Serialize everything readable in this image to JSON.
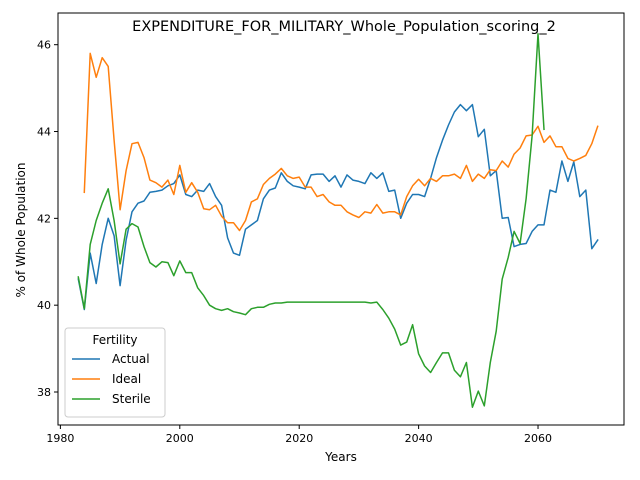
{
  "chart_data": {
    "type": "line",
    "title": "EXPENDITURE_FOR_MILITARY_Whole_Population_scoring_2",
    "xlabel": "Years",
    "ylabel": "% of Whole Population",
    "xlim": [
      1979.6,
      2074.4
    ],
    "ylim": [
      37.24,
      46.73
    ],
    "x_ticks": [
      1980,
      2000,
      2020,
      2040,
      2060
    ],
    "y_ticks": [
      38,
      40,
      42,
      44,
      46
    ],
    "grid": false,
    "legend": {
      "title": "Fertility",
      "placement": "lower-left"
    },
    "series": [
      {
        "name": "Actual",
        "color": "#1f77b4",
        "points": [
          [
            1983,
            40.6
          ],
          [
            1984,
            39.9
          ],
          [
            1985,
            41.2
          ],
          [
            1986,
            40.5
          ],
          [
            1987,
            41.4
          ],
          [
            1988,
            42.0
          ],
          [
            1989,
            41.6
          ],
          [
            1990,
            40.45
          ],
          [
            1991,
            41.5
          ],
          [
            1992,
            42.15
          ],
          [
            1993,
            42.35
          ],
          [
            1994,
            42.4
          ],
          [
            1995,
            42.6
          ],
          [
            1996,
            42.62
          ],
          [
            1997,
            42.65
          ],
          [
            1998,
            42.75
          ],
          [
            1999,
            42.8
          ],
          [
            2000,
            43.0
          ],
          [
            2001,
            42.55
          ],
          [
            2002,
            42.5
          ],
          [
            2003,
            42.65
          ],
          [
            2004,
            42.62
          ],
          [
            2005,
            42.8
          ],
          [
            2006,
            42.5
          ],
          [
            2007,
            42.3
          ],
          [
            2008,
            41.55
          ],
          [
            2009,
            41.2
          ],
          [
            2010,
            41.15
          ],
          [
            2011,
            41.75
          ],
          [
            2012,
            41.85
          ],
          [
            2013,
            41.95
          ],
          [
            2014,
            42.45
          ],
          [
            2015,
            42.65
          ],
          [
            2016,
            42.7
          ],
          [
            2017,
            43.05
          ],
          [
            2018,
            42.85
          ],
          [
            2019,
            42.75
          ],
          [
            2020,
            42.72
          ],
          [
            2021,
            42.68
          ],
          [
            2022,
            43.0
          ],
          [
            2023,
            43.02
          ],
          [
            2024,
            43.02
          ],
          [
            2025,
            42.85
          ],
          [
            2026,
            42.98
          ],
          [
            2027,
            42.72
          ],
          [
            2028,
            43.0
          ],
          [
            2029,
            42.88
          ],
          [
            2030,
            42.85
          ],
          [
            2031,
            42.8
          ],
          [
            2032,
            43.05
          ],
          [
            2033,
            42.92
          ],
          [
            2034,
            43.05
          ],
          [
            2035,
            42.62
          ],
          [
            2036,
            42.65
          ],
          [
            2037,
            42.0
          ],
          [
            2038,
            42.35
          ],
          [
            2039,
            42.55
          ],
          [
            2040,
            42.55
          ],
          [
            2041,
            42.5
          ],
          [
            2042,
            42.92
          ],
          [
            2043,
            43.4
          ],
          [
            2044,
            43.8
          ],
          [
            2045,
            44.15
          ],
          [
            2046,
            44.45
          ],
          [
            2047,
            44.62
          ],
          [
            2048,
            44.48
          ],
          [
            2049,
            44.62
          ],
          [
            2050,
            43.88
          ],
          [
            2051,
            44.05
          ],
          [
            2052,
            42.98
          ],
          [
            2053,
            43.1
          ],
          [
            2054,
            42.0
          ],
          [
            2055,
            42.02
          ],
          [
            2056,
            41.35
          ],
          [
            2057,
            41.4
          ],
          [
            2058,
            41.42
          ],
          [
            2059,
            41.7
          ],
          [
            2060,
            41.85
          ],
          [
            2061,
            41.85
          ],
          [
            2062,
            42.65
          ],
          [
            2063,
            42.6
          ],
          [
            2064,
            43.32
          ],
          [
            2065,
            42.85
          ],
          [
            2066,
            43.3
          ],
          [
            2067,
            42.5
          ],
          [
            2068,
            42.65
          ],
          [
            2069,
            41.3
          ],
          [
            2070,
            41.5
          ]
        ]
      },
      {
        "name": "Ideal",
        "color": "#ff7f0e",
        "points": [
          [
            1984,
            42.6
          ],
          [
            1985,
            45.8
          ],
          [
            1986,
            45.25
          ],
          [
            1987,
            45.7
          ],
          [
            1988,
            45.5
          ],
          [
            1989,
            43.8
          ],
          [
            1990,
            42.2
          ],
          [
            1991,
            43.1
          ],
          [
            1992,
            43.72
          ],
          [
            1993,
            43.75
          ],
          [
            1994,
            43.4
          ],
          [
            1995,
            42.88
          ],
          [
            1996,
            42.82
          ],
          [
            1997,
            42.72
          ],
          [
            1998,
            42.88
          ],
          [
            1999,
            42.55
          ],
          [
            2000,
            43.22
          ],
          [
            2001,
            42.6
          ],
          [
            2002,
            42.82
          ],
          [
            2003,
            42.6
          ],
          [
            2004,
            42.22
          ],
          [
            2005,
            42.2
          ],
          [
            2006,
            42.3
          ],
          [
            2007,
            42.05
          ],
          [
            2008,
            41.9
          ],
          [
            2009,
            41.9
          ],
          [
            2010,
            41.72
          ],
          [
            2011,
            41.95
          ],
          [
            2012,
            42.38
          ],
          [
            2013,
            42.45
          ],
          [
            2014,
            42.78
          ],
          [
            2015,
            42.92
          ],
          [
            2016,
            43.02
          ],
          [
            2017,
            43.15
          ],
          [
            2018,
            42.98
          ],
          [
            2019,
            42.92
          ],
          [
            2020,
            42.95
          ],
          [
            2021,
            42.72
          ],
          [
            2022,
            42.72
          ],
          [
            2023,
            42.5
          ],
          [
            2024,
            42.55
          ],
          [
            2025,
            42.38
          ],
          [
            2026,
            42.3
          ],
          [
            2027,
            42.3
          ],
          [
            2028,
            42.15
          ],
          [
            2029,
            42.08
          ],
          [
            2030,
            42.02
          ],
          [
            2031,
            42.15
          ],
          [
            2032,
            42.12
          ],
          [
            2033,
            42.32
          ],
          [
            2034,
            42.12
          ],
          [
            2035,
            42.15
          ],
          [
            2036,
            42.15
          ],
          [
            2037,
            42.08
          ],
          [
            2038,
            42.5
          ],
          [
            2039,
            42.75
          ],
          [
            2040,
            42.9
          ],
          [
            2041,
            42.75
          ],
          [
            2042,
            42.92
          ],
          [
            2043,
            42.85
          ],
          [
            2044,
            42.98
          ],
          [
            2045,
            42.98
          ],
          [
            2046,
            43.02
          ],
          [
            2047,
            42.92
          ],
          [
            2048,
            43.22
          ],
          [
            2049,
            42.85
          ],
          [
            2050,
            43.02
          ],
          [
            2051,
            42.92
          ],
          [
            2052,
            43.12
          ],
          [
            2053,
            43.1
          ],
          [
            2054,
            43.32
          ],
          [
            2055,
            43.18
          ],
          [
            2056,
            43.48
          ],
          [
            2057,
            43.62
          ],
          [
            2058,
            43.9
          ],
          [
            2059,
            43.92
          ],
          [
            2060,
            44.12
          ],
          [
            2061,
            43.75
          ],
          [
            2062,
            43.9
          ],
          [
            2063,
            43.65
          ],
          [
            2064,
            43.65
          ],
          [
            2065,
            43.38
          ],
          [
            2066,
            43.32
          ],
          [
            2067,
            43.38
          ],
          [
            2068,
            43.45
          ],
          [
            2069,
            43.72
          ],
          [
            2070,
            44.12
          ]
        ]
      },
      {
        "name": "Sterile",
        "color": "#2ca02c",
        "points": [
          [
            1983,
            40.65
          ],
          [
            1984,
            39.92
          ],
          [
            1985,
            41.4
          ],
          [
            1986,
            41.95
          ],
          [
            1987,
            42.35
          ],
          [
            1988,
            42.68
          ],
          [
            1989,
            41.95
          ],
          [
            1990,
            40.95
          ],
          [
            1991,
            41.75
          ],
          [
            1992,
            41.88
          ],
          [
            1993,
            41.8
          ],
          [
            1994,
            41.35
          ],
          [
            1995,
            40.98
          ],
          [
            1996,
            40.88
          ],
          [
            1997,
            41.0
          ],
          [
            1998,
            40.98
          ],
          [
            1999,
            40.68
          ],
          [
            2000,
            41.02
          ],
          [
            2001,
            40.75
          ],
          [
            2002,
            40.75
          ],
          [
            2003,
            40.4
          ],
          [
            2004,
            40.22
          ],
          [
            2005,
            40.0
          ],
          [
            2006,
            39.92
          ],
          [
            2007,
            39.88
          ],
          [
            2008,
            39.92
          ],
          [
            2009,
            39.85
          ],
          [
            2010,
            39.82
          ],
          [
            2011,
            39.78
          ],
          [
            2012,
            39.92
          ],
          [
            2013,
            39.95
          ],
          [
            2014,
            39.95
          ],
          [
            2015,
            40.02
          ],
          [
            2016,
            40.05
          ],
          [
            2017,
            40.05
          ],
          [
            2018,
            40.07
          ],
          [
            2019,
            40.07
          ],
          [
            2020,
            40.07
          ],
          [
            2021,
            40.07
          ],
          [
            2022,
            40.07
          ],
          [
            2023,
            40.07
          ],
          [
            2024,
            40.07
          ],
          [
            2025,
            40.07
          ],
          [
            2026,
            40.07
          ],
          [
            2027,
            40.07
          ],
          [
            2028,
            40.07
          ],
          [
            2029,
            40.07
          ],
          [
            2030,
            40.07
          ],
          [
            2031,
            40.07
          ],
          [
            2032,
            40.05
          ],
          [
            2033,
            40.07
          ],
          [
            2034,
            39.9
          ],
          [
            2035,
            39.7
          ],
          [
            2036,
            39.45
          ],
          [
            2037,
            39.08
          ],
          [
            2038,
            39.15
          ],
          [
            2039,
            39.55
          ],
          [
            2040,
            38.88
          ],
          [
            2041,
            38.6
          ],
          [
            2042,
            38.45
          ],
          [
            2043,
            38.68
          ],
          [
            2044,
            38.9
          ],
          [
            2045,
            38.9
          ],
          [
            2046,
            38.5
          ],
          [
            2047,
            38.35
          ],
          [
            2048,
            38.68
          ],
          [
            2049,
            37.65
          ],
          [
            2050,
            38.02
          ],
          [
            2051,
            37.68
          ],
          [
            2052,
            38.68
          ],
          [
            2053,
            39.4
          ],
          [
            2054,
            40.6
          ],
          [
            2055,
            41.1
          ],
          [
            2056,
            41.7
          ],
          [
            2057,
            41.42
          ],
          [
            2058,
            42.45
          ],
          [
            2059,
            43.9
          ],
          [
            2060,
            46.25
          ],
          [
            2061,
            44.05
          ]
        ]
      }
    ]
  }
}
